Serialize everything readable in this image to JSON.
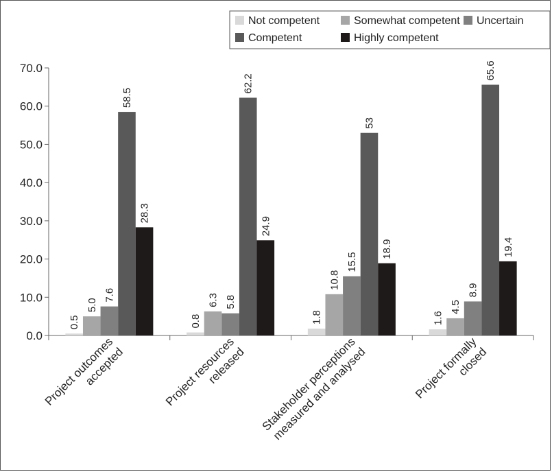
{
  "chart_data": {
    "type": "bar",
    "title": "",
    "xlabel": "",
    "ylabel": "",
    "ylim": [
      0,
      70
    ],
    "yticks": [
      "0.0",
      "10.0",
      "20.0",
      "30.0",
      "40.0",
      "50.0",
      "60.0",
      "70.0"
    ],
    "ytick_values": [
      0,
      10,
      20,
      30,
      40,
      50,
      60,
      70
    ],
    "grid": false,
    "legend_position": "top-right",
    "categories": [
      [
        "Project outcomes",
        "accepted"
      ],
      [
        "Project resources",
        "released"
      ],
      [
        "Stakeholder perceptions",
        "measured and analysed"
      ],
      [
        "Project formally",
        "closed"
      ]
    ],
    "series": [
      {
        "name": "Not competent",
        "color": "#d9d9d9",
        "values": [
          0.5,
          0.8,
          1.8,
          1.6
        ],
        "labels": [
          "0.5",
          "0.8",
          "1.8",
          "1.6"
        ]
      },
      {
        "name": "Somewhat competent",
        "color": "#a6a6a6",
        "values": [
          5.0,
          6.3,
          10.8,
          4.5
        ],
        "labels": [
          "5.0",
          "6.3",
          "10.8",
          "4.5"
        ]
      },
      {
        "name": "Uncertain",
        "color": "#808080",
        "values": [
          7.6,
          5.8,
          15.5,
          8.9
        ],
        "labels": [
          "7.6",
          "5.8",
          "15.5",
          "8.9"
        ]
      },
      {
        "name": "Competent",
        "color": "#595959",
        "values": [
          58.5,
          62.2,
          53,
          65.6
        ],
        "labels": [
          "58.5",
          "62.2",
          "53",
          "65.6"
        ]
      },
      {
        "name": "Highly competent",
        "color": "#1f1a1a",
        "values": [
          28.3,
          24.9,
          18.9,
          19.4
        ],
        "labels": [
          "28.3",
          "24.9",
          "18.9",
          "19.4"
        ]
      }
    ]
  }
}
